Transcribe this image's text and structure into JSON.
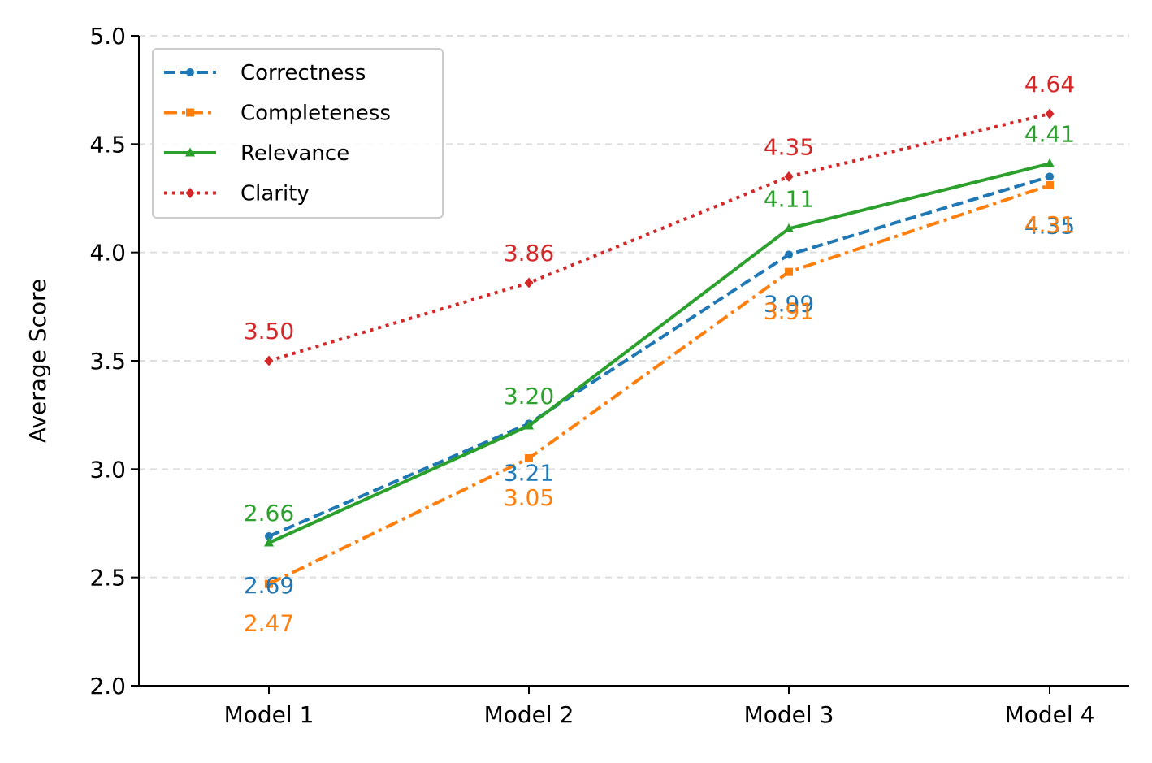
{
  "chart_data": {
    "type": "line",
    "title": "",
    "xlabel": "",
    "ylabel": "Average Score",
    "categories": [
      "Model 1",
      "Model 2",
      "Model 3",
      "Model 4"
    ],
    "ylim": [
      2.0,
      5.0
    ],
    "yticks": [
      "2.0",
      "2.5",
      "3.0",
      "3.5",
      "4.0",
      "4.5",
      "5.0"
    ],
    "grid": "y-dashed",
    "legend_position": "top-left",
    "series": [
      {
        "name": "Correctness",
        "values": [
          2.69,
          3.21,
          3.99,
          4.35
        ],
        "labels": [
          "2.69",
          "3.21",
          "3.99",
          "4.35"
        ],
        "color": "#1f77b4",
        "line_style": "dashed",
        "marker": "circle",
        "label_side": "below"
      },
      {
        "name": "Completeness",
        "values": [
          2.47,
          3.05,
          3.91,
          4.31
        ],
        "labels": [
          "2.47",
          "3.05",
          "3.91",
          "4.31"
        ],
        "color": "#ff7f0e",
        "line_style": "dashdot",
        "marker": "square",
        "label_side": "below"
      },
      {
        "name": "Relevance",
        "values": [
          2.66,
          3.2,
          4.11,
          4.41
        ],
        "labels": [
          "2.66",
          "3.20",
          "4.11",
          "4.41"
        ],
        "color": "#2ca02c",
        "line_style": "solid",
        "marker": "triangle",
        "label_side": "above"
      },
      {
        "name": "Clarity",
        "values": [
          3.5,
          3.86,
          4.35,
          4.64
        ],
        "labels": [
          "3.50",
          "3.86",
          "4.35",
          "4.64"
        ],
        "color": "#d62728",
        "line_style": "dotted",
        "marker": "diamond",
        "label_side": "above"
      }
    ]
  }
}
